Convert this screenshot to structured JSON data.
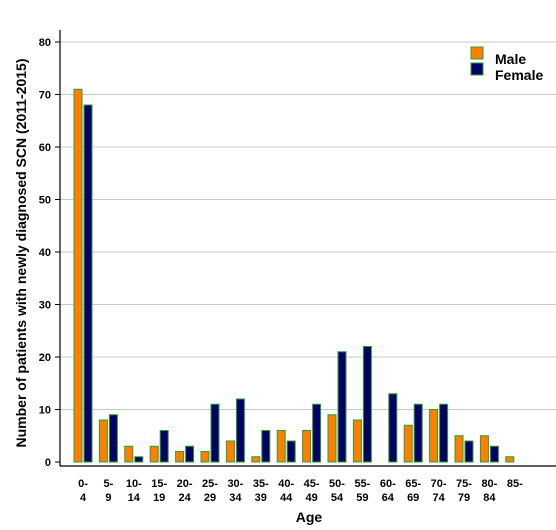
{
  "chart_data": {
    "type": "bar",
    "categories": [
      [
        "0-",
        "4"
      ],
      [
        "5-",
        "9"
      ],
      [
        "10-",
        "14"
      ],
      [
        "15-",
        "19"
      ],
      [
        "20-",
        "24"
      ],
      [
        "25-",
        "29"
      ],
      [
        "30-",
        "34"
      ],
      [
        "35-",
        "39"
      ],
      [
        "40-",
        "44"
      ],
      [
        "45-",
        "49"
      ],
      [
        "50-",
        "54"
      ],
      [
        "55-",
        "59"
      ],
      [
        "60-",
        "64"
      ],
      [
        "65-",
        "69"
      ],
      [
        "70-",
        "74"
      ],
      [
        "75-",
        "79"
      ],
      [
        "80-",
        "84"
      ],
      [
        "85-",
        ""
      ]
    ],
    "series": [
      {
        "name": "Male",
        "color": "#ff7f00",
        "values": [
          71,
          8,
          3,
          3,
          2,
          2,
          4,
          1,
          6,
          6,
          9,
          8,
          0,
          7,
          10,
          5,
          5,
          1
        ]
      },
      {
        "name": "Female",
        "color": "#000066",
        "values": [
          68,
          9,
          1,
          6,
          3,
          11,
          12,
          6,
          4,
          11,
          21,
          22,
          13,
          11,
          11,
          4,
          3,
          0
        ]
      }
    ],
    "bar_edge_color": "#2e9e2e",
    "title": "",
    "xlabel": "Age",
    "ylabel": "Number of patients with newly diagnosed SCN (2011-2015)",
    "ylim": [
      0,
      82
    ],
    "yticks": [
      0,
      10,
      20,
      30,
      40,
      50,
      60,
      70,
      80
    ],
    "grid": "horizontal",
    "legend_position": "top-right"
  }
}
